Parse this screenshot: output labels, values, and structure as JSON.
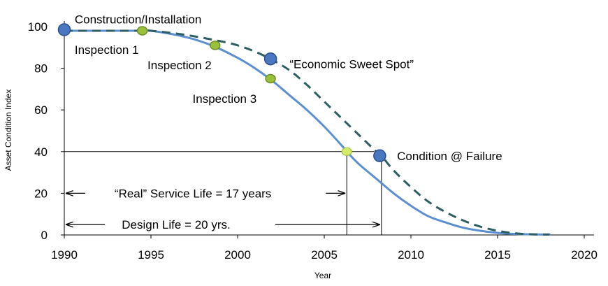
{
  "chart_data": {
    "type": "line",
    "xlabel": "Year",
    "ylabel": "Asset Condition  Index",
    "xlim": [
      1990,
      2020
    ],
    "ylim": [
      0,
      100
    ],
    "x_ticks": [
      "1990",
      "1995",
      "2000",
      "2005",
      "2010",
      "2015",
      "2020"
    ],
    "y_ticks": [
      "0",
      "20",
      "40",
      "60",
      "80",
      "100"
    ],
    "grid": false,
    "series": [
      {
        "style": "solid",
        "color": "#5b8fd0",
        "x": [
          1990,
          1992,
          1994,
          1995,
          1997,
          1998.5,
          2000,
          2001,
          2002,
          2003,
          2004,
          2005,
          2006,
          2006.3,
          2007,
          2008,
          2009,
          2010,
          2011,
          2012,
          2013,
          2014,
          2015,
          2016,
          2017,
          2018
        ],
        "y": [
          98,
          98,
          98,
          98,
          95,
          91,
          85,
          80,
          74,
          67,
          60,
          52,
          43,
          40,
          34,
          27,
          20,
          14,
          9,
          6,
          3.5,
          2,
          1,
          0.5,
          0.3,
          0.2
        ]
      },
      {
        "style": "dashed",
        "color": "#2e5e62",
        "x": [
          1990,
          1992,
          1994,
          1995,
          1997,
          1999,
          2000,
          2001,
          2002,
          2003,
          2004,
          2005,
          2006,
          2007,
          2008,
          2008.3,
          2009,
          2010,
          2011,
          2012,
          2013,
          2014,
          2015,
          2016,
          2017,
          2018
        ],
        "y": [
          98,
          98,
          98,
          98,
          96,
          93,
          91,
          88,
          84,
          79,
          72,
          64,
          56,
          48,
          40,
          38,
          31,
          23,
          16,
          11,
          7,
          4,
          2,
          0.8,
          0.3,
          0.2
        ]
      }
    ],
    "points": [
      {
        "kind": "blue",
        "x": 1990,
        "y": 98.5
      },
      {
        "kind": "green",
        "x": 1994.5,
        "y": 98
      },
      {
        "kind": "green",
        "x": 1998.7,
        "y": 91
      },
      {
        "kind": "blue",
        "x": 2001.9,
        "y": 84.5
      },
      {
        "kind": "green",
        "x": 2001.9,
        "y": 75
      },
      {
        "kind": "green-light",
        "x": 2006.3,
        "y": 40
      },
      {
        "kind": "blue",
        "x": 2008.2,
        "y": 38
      }
    ],
    "annotations": [
      {
        "text": "Construction/Installation",
        "x": 1990.6,
        "y": 103.5
      },
      {
        "text": "Inspection 1",
        "x": 1990.6,
        "y": 89
      },
      {
        "text": "Inspection 2",
        "x": 1994.8,
        "y": 81.5
      },
      {
        "text": "Inspection 3",
        "x": 1997.4,
        "y": 65.5
      },
      {
        "text": "“Economic Sweet Spot”",
        "x": 2003,
        "y": 82
      },
      {
        "text": "Condition @ Failure",
        "x": 2009.2,
        "y": 38
      }
    ],
    "reference_lines": {
      "failure_level": 40,
      "real_service_end": 2006.3,
      "design_life_end": 2008.3
    },
    "dimension_labels": {
      "real_service": {
        "text": "“Real” Service Life = 17 years",
        "y": 20
      },
      "design_life": {
        "text": "Design Life = 20 yrs.",
        "y": 5
      }
    },
    "marker_colors": {
      "blue_fill": "#4a78c0",
      "blue_stroke": "#2a4f8f",
      "green_fill": "#9bc13c",
      "green_stroke": "#6b8f26",
      "green_light_fill": "#d4ec6a"
    }
  }
}
